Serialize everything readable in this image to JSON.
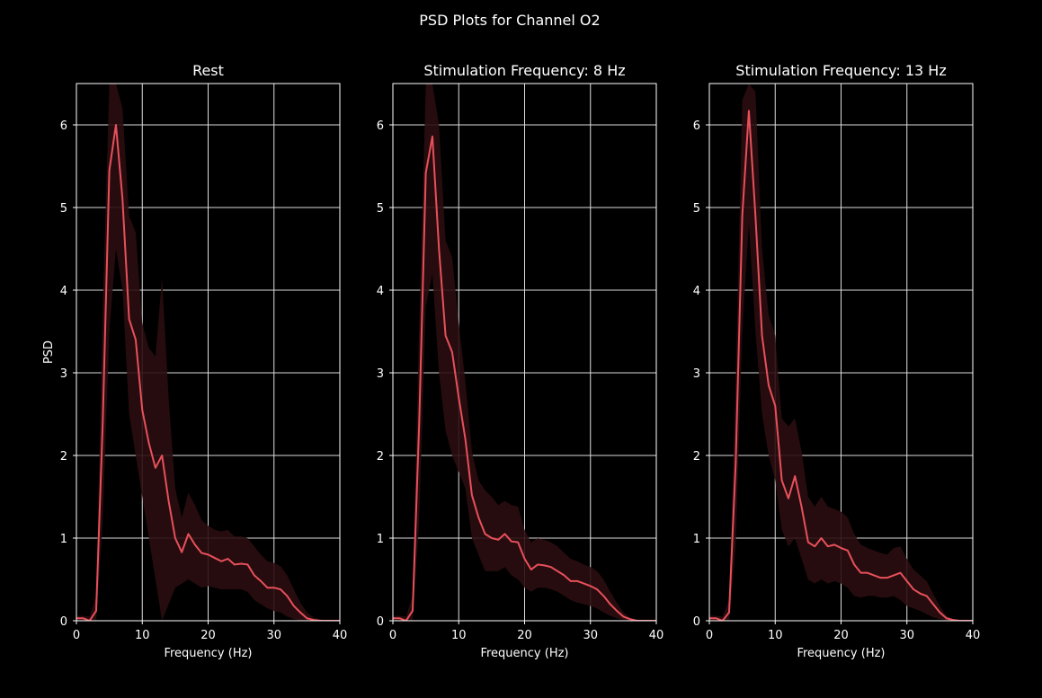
{
  "figure": {
    "title": "PSD Plots for Channel O2",
    "line_color": "#e8505b",
    "band_color": "#2a0d10",
    "grid_color": "#dddddd",
    "background": "#000000"
  },
  "chart_data": [
    {
      "type": "line",
      "title": "Rest",
      "xlabel": "Frequency (Hz)",
      "ylabel": "PSD",
      "xlim": [
        0,
        40
      ],
      "ylim": [
        0,
        6.5
      ],
      "xticks": [
        0,
        10,
        20,
        30,
        40
      ],
      "yticks": [
        0,
        1,
        2,
        3,
        4,
        5,
        6
      ],
      "grid": true,
      "x": [
        0,
        1,
        2,
        3,
        4,
        5,
        6,
        7,
        8,
        9,
        10,
        11,
        12,
        13,
        14,
        15,
        16,
        17,
        18,
        19,
        20,
        21,
        22,
        23,
        24,
        25,
        26,
        27,
        28,
        29,
        30,
        31,
        32,
        33,
        34,
        35,
        36,
        37,
        38,
        39,
        40
      ],
      "y": [
        0.03,
        0.03,
        0.0,
        0.12,
        2.4,
        5.45,
        6.0,
        5.1,
        3.65,
        3.4,
        2.55,
        2.15,
        1.85,
        2.0,
        1.45,
        1.0,
        0.83,
        1.05,
        0.92,
        0.82,
        0.8,
        0.76,
        0.72,
        0.75,
        0.68,
        0.69,
        0.68,
        0.55,
        0.48,
        0.4,
        0.4,
        0.38,
        0.3,
        0.18,
        0.1,
        0.03,
        0.01,
        0.0,
        0.0,
        0.0,
        0.0
      ],
      "lower": [
        0.0,
        0.0,
        0.0,
        0.0,
        1.2,
        3.5,
        4.5,
        4.0,
        2.5,
        2.0,
        1.5,
        1.0,
        0.5,
        0.0,
        0.2,
        0.4,
        0.45,
        0.5,
        0.45,
        0.4,
        0.42,
        0.4,
        0.38,
        0.38,
        0.38,
        0.38,
        0.35,
        0.25,
        0.2,
        0.15,
        0.12,
        0.1,
        0.05,
        0.02,
        0.0,
        0.0,
        0.0,
        0.0,
        0.0,
        0.0,
        0.0
      ],
      "upper": [
        0.06,
        0.06,
        0.05,
        0.3,
        3.8,
        6.5,
        6.5,
        6.2,
        4.9,
        4.7,
        3.6,
        3.3,
        3.2,
        4.15,
        2.7,
        1.6,
        1.25,
        1.55,
        1.4,
        1.22,
        1.15,
        1.1,
        1.08,
        1.1,
        1.02,
        1.02,
        1.0,
        0.9,
        0.8,
        0.72,
        0.7,
        0.66,
        0.55,
        0.38,
        0.22,
        0.1,
        0.04,
        0.02,
        0.0,
        0.0,
        0.0
      ]
    },
    {
      "type": "line",
      "title": "Stimulation Frequency: 8 Hz",
      "xlabel": "Frequency (Hz)",
      "ylabel": "",
      "xlim": [
        0,
        40
      ],
      "ylim": [
        0,
        6.5
      ],
      "xticks": [
        0,
        10,
        20,
        30,
        40
      ],
      "yticks": [
        0,
        1,
        2,
        3,
        4,
        5,
        6
      ],
      "grid": true,
      "x": [
        0,
        1,
        2,
        3,
        4,
        5,
        6,
        7,
        8,
        9,
        10,
        11,
        12,
        13,
        14,
        15,
        16,
        17,
        18,
        19,
        20,
        21,
        22,
        23,
        24,
        25,
        26,
        27,
        28,
        29,
        30,
        31,
        32,
        33,
        34,
        35,
        36,
        37,
        38,
        39,
        40
      ],
      "y": [
        0.03,
        0.03,
        0.0,
        0.12,
        2.4,
        5.42,
        5.86,
        4.5,
        3.45,
        3.25,
        2.7,
        2.2,
        1.52,
        1.25,
        1.05,
        1.0,
        0.98,
        1.05,
        0.96,
        0.95,
        0.75,
        0.62,
        0.68,
        0.67,
        0.65,
        0.6,
        0.55,
        0.48,
        0.48,
        0.45,
        0.42,
        0.38,
        0.3,
        0.2,
        0.12,
        0.05,
        0.02,
        0.0,
        0.0,
        0.0,
        0.0
      ],
      "lower": [
        0.0,
        0.0,
        0.0,
        0.0,
        1.2,
        3.8,
        4.2,
        3.0,
        2.3,
        2.0,
        1.8,
        1.6,
        1.0,
        0.8,
        0.6,
        0.6,
        0.6,
        0.65,
        0.55,
        0.5,
        0.4,
        0.35,
        0.4,
        0.4,
        0.38,
        0.35,
        0.3,
        0.25,
        0.22,
        0.2,
        0.18,
        0.15,
        0.1,
        0.06,
        0.03,
        0.01,
        0.0,
        0.0,
        0.0,
        0.0,
        0.0
      ],
      "upper": [
        0.06,
        0.06,
        0.05,
        0.3,
        3.6,
        6.5,
        6.5,
        6.0,
        4.6,
        4.4,
        3.6,
        2.9,
        2.05,
        1.7,
        1.58,
        1.5,
        1.4,
        1.45,
        1.4,
        1.38,
        1.1,
        0.95,
        1.0,
        0.98,
        0.95,
        0.9,
        0.82,
        0.75,
        0.72,
        0.68,
        0.65,
        0.6,
        0.5,
        0.35,
        0.22,
        0.1,
        0.04,
        0.02,
        0.0,
        0.0,
        0.0
      ]
    },
    {
      "type": "line",
      "title": "Stimulation Frequency: 13 Hz",
      "xlabel": "Frequency (Hz)",
      "ylabel": "",
      "xlim": [
        0,
        40
      ],
      "ylim": [
        0,
        6.5
      ],
      "xticks": [
        0,
        10,
        20,
        30,
        40
      ],
      "yticks": [
        0,
        1,
        2,
        3,
        4,
        5,
        6
      ],
      "grid": true,
      "x": [
        0,
        1,
        2,
        3,
        4,
        5,
        6,
        7,
        8,
        9,
        10,
        11,
        12,
        13,
        14,
        15,
        16,
        17,
        18,
        19,
        20,
        21,
        22,
        23,
        24,
        25,
        26,
        27,
        28,
        29,
        30,
        31,
        32,
        33,
        34,
        35,
        36,
        37,
        38,
        39,
        40
      ],
      "y": [
        0.03,
        0.03,
        0.0,
        0.1,
        1.9,
        4.9,
        6.17,
        4.9,
        3.45,
        2.85,
        2.6,
        1.7,
        1.48,
        1.75,
        1.38,
        0.95,
        0.9,
        1.0,
        0.9,
        0.92,
        0.88,
        0.85,
        0.68,
        0.58,
        0.58,
        0.55,
        0.52,
        0.52,
        0.55,
        0.58,
        0.48,
        0.38,
        0.33,
        0.3,
        0.2,
        0.1,
        0.03,
        0.01,
        0.0,
        0.0,
        0.0
      ],
      "lower": [
        0.0,
        0.0,
        0.0,
        0.0,
        0.9,
        3.5,
        4.8,
        3.5,
        2.5,
        2.0,
        1.7,
        1.1,
        0.9,
        1.0,
        0.75,
        0.5,
        0.45,
        0.5,
        0.45,
        0.48,
        0.45,
        0.4,
        0.3,
        0.28,
        0.3,
        0.3,
        0.28,
        0.28,
        0.3,
        0.25,
        0.18,
        0.15,
        0.12,
        0.08,
        0.04,
        0.02,
        0.0,
        0.0,
        0.0,
        0.0,
        0.0
      ],
      "upper": [
        0.06,
        0.06,
        0.05,
        0.25,
        2.9,
        6.3,
        6.5,
        6.4,
        4.5,
        3.7,
        3.45,
        2.45,
        2.35,
        2.45,
        2.05,
        1.5,
        1.38,
        1.5,
        1.38,
        1.35,
        1.32,
        1.25,
        1.05,
        0.92,
        0.88,
        0.85,
        0.82,
        0.8,
        0.88,
        0.9,
        0.75,
        0.62,
        0.55,
        0.48,
        0.32,
        0.18,
        0.06,
        0.02,
        0.0,
        0.0,
        0.0
      ]
    }
  ]
}
